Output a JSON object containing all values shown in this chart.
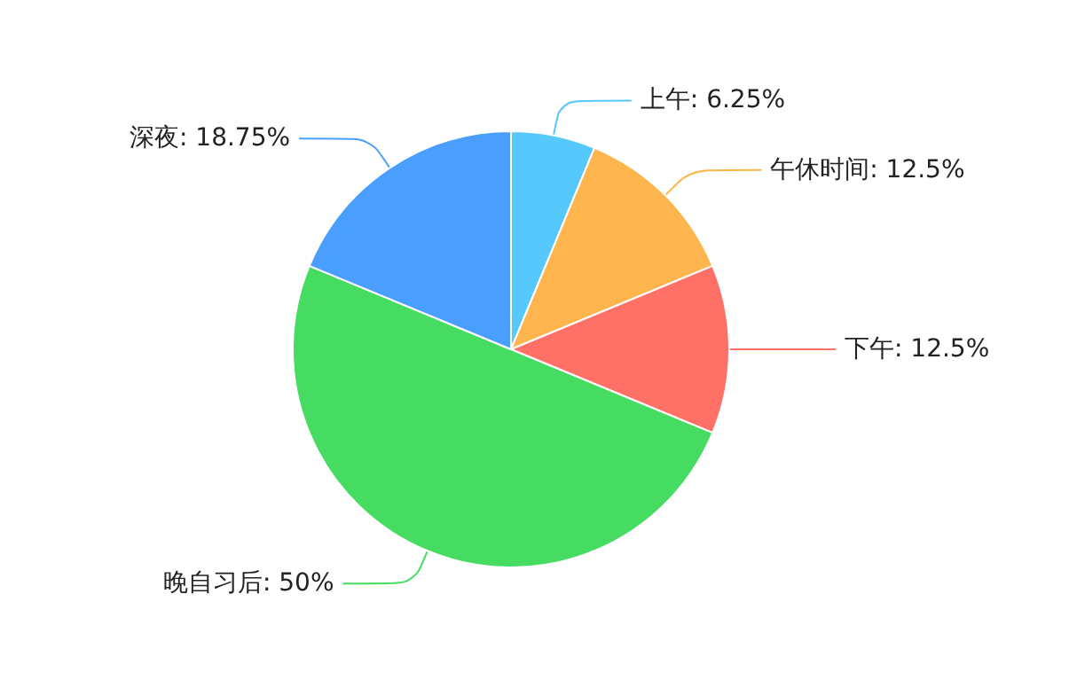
{
  "chart_data": {
    "type": "pie",
    "categories": [
      "上午",
      "午休时间",
      "下午",
      "晚自习后",
      "深夜"
    ],
    "values": [
      6.25,
      12.5,
      12.5,
      50,
      18.75
    ],
    "colors": [
      "#56c8fb",
      "#ffb54d",
      "#ff7066",
      "#45dc61",
      "#4a9ffe"
    ],
    "value_labels": [
      "6.25%",
      "12.5%",
      "12.5%",
      "50%",
      "18.75%"
    ],
    "legend": false
  }
}
